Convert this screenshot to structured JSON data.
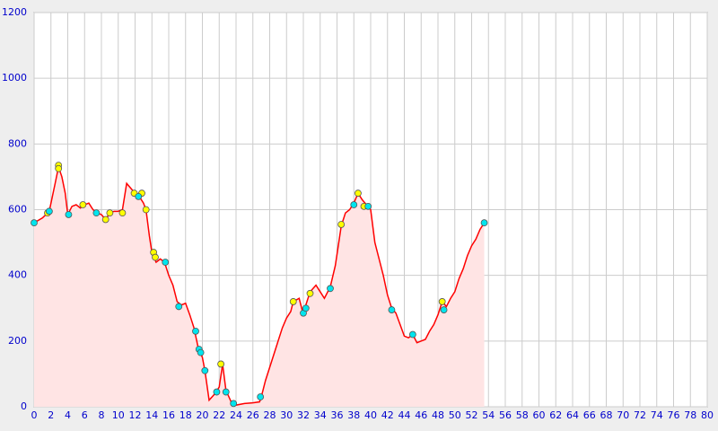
{
  "chart_data": {
    "type": "line",
    "xlim": [
      0,
      80
    ],
    "xticks": [
      0,
      2,
      4,
      6,
      8,
      10,
      12,
      14,
      16,
      18,
      20,
      22,
      24,
      26,
      28,
      30,
      32,
      34,
      36,
      38,
      40,
      42,
      44,
      46,
      48,
      50,
      52,
      54,
      56,
      58,
      60,
      62,
      64,
      66,
      68,
      70,
      72,
      74,
      76,
      78,
      80
    ],
    "ylim": [
      0,
      1200
    ],
    "yticks": [
      0,
      200,
      400,
      600,
      800,
      1000,
      1200
    ],
    "grid": true,
    "series": [
      {
        "color": "#ff0000",
        "fill": "#ffe4e4",
        "x": [
          0,
          1,
          1.8,
          2.5,
          2.9,
          3.3,
          3.7,
          4,
          4.5,
          5,
          5.5,
          6,
          6.5,
          7,
          7.5,
          8,
          8.5,
          9,
          9.5,
          10,
          10.5,
          11,
          11.5,
          12,
          12.5,
          13,
          13.3,
          13.7,
          14,
          14.5,
          15,
          15.5,
          16,
          16.5,
          17,
          17.5,
          18,
          18.5,
          19,
          19.5,
          20,
          20.3,
          20.8,
          21.5,
          22,
          22.4,
          22.8,
          23.5,
          24,
          25,
          26,
          26.8,
          27,
          27.5,
          28,
          28.5,
          29,
          29.5,
          30,
          30.5,
          30.8,
          31.5,
          32,
          32.3,
          32.8,
          33.5,
          34,
          34.5,
          35.2,
          35.8,
          36.5,
          37,
          37.5,
          38,
          38.5,
          39,
          39.5,
          40,
          40.5,
          41,
          41.5,
          42,
          42.5,
          43,
          43.5,
          44,
          44.5,
          45,
          45.5,
          46,
          46.5,
          47,
          47.5,
          48,
          48.5,
          49,
          49.5,
          50,
          50.5,
          51,
          51.5,
          52,
          52.5,
          53,
          53.5
        ],
        "values": [
          560,
          575,
          595,
          680,
          730,
          700,
          650,
          585,
          610,
          615,
          605,
          615,
          620,
          600,
          590,
          585,
          570,
          590,
          595,
          595,
          600,
          680,
          665,
          650,
          640,
          620,
          600,
          520,
          470,
          440,
          450,
          440,
          400,
          370,
          320,
          310,
          315,
          280,
          240,
          180,
          150,
          110,
          20,
          40,
          60,
          130,
          50,
          10,
          5,
          10,
          12,
          15,
          30,
          80,
          120,
          160,
          200,
          240,
          270,
          290,
          320,
          330,
          280,
          310,
          350,
          370,
          350,
          330,
          365,
          430,
          550,
          590,
          600,
          620,
          650,
          630,
          615,
          600,
          500,
          450,
          400,
          340,
          300,
          285,
          250,
          215,
          210,
          220,
          195,
          200,
          205,
          230,
          250,
          280,
          320,
          305,
          330,
          350,
          390,
          420,
          460,
          490,
          510,
          540,
          560
        ]
      },
      {
        "type": "scatter",
        "color": "#ffff00",
        "x": [
          1.6,
          2.9,
          2.9,
          5.8,
          8.5,
          9,
          10.5,
          11.9,
          12.8,
          13.3,
          14.2,
          14.4,
          22.2,
          30.8,
          32.8,
          36.5,
          38.5,
          39.2,
          48.5
        ],
        "values": [
          590,
          735,
          725,
          615,
          570,
          590,
          590,
          650,
          650,
          600,
          470,
          455,
          130,
          320,
          345,
          555,
          650,
          610,
          320
        ]
      },
      {
        "type": "scatter",
        "color": "#00e5ee",
        "x": [
          0,
          1.8,
          4.1,
          7.4,
          12.4,
          15.6,
          17.2,
          19.2,
          19.6,
          19.8,
          20.3,
          21.7,
          22.8,
          23.7,
          26.9,
          32,
          32.3,
          35.2,
          38,
          39.7,
          42.5,
          45,
          48.7,
          53.5
        ],
        "values": [
          560,
          595,
          585,
          590,
          640,
          440,
          305,
          230,
          175,
          165,
          110,
          45,
          45,
          10,
          30,
          285,
          300,
          360,
          615,
          610,
          295,
          220,
          295,
          560
        ]
      }
    ]
  }
}
